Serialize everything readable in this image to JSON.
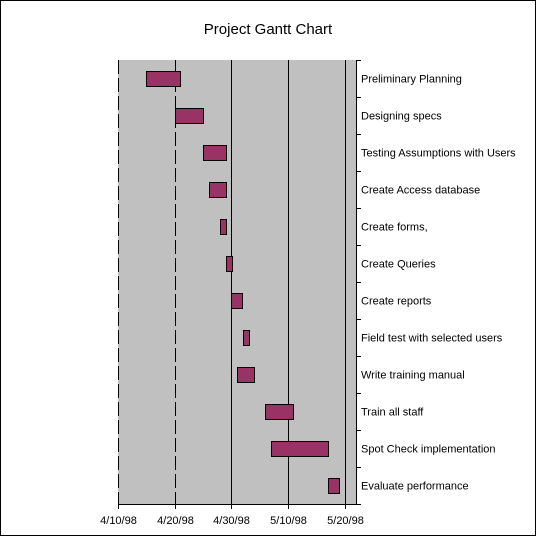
{
  "chart_data": {
    "type": "gantt",
    "title": "Project Gantt Chart",
    "x_axis": {
      "type": "date",
      "range": [
        "1998-04-10",
        "1998-05-22"
      ],
      "tick_dates": [
        "1998-04-10",
        "1998-04-20",
        "1998-04-30",
        "1998-05-10",
        "1998-05-20"
      ],
      "tick_labels": [
        "4/10/98",
        "4/20/98",
        "4/30/98",
        "5/10/98",
        "5/20/98"
      ]
    },
    "tasks": [
      {
        "name": "Preliminary Planning",
        "start": "1998-04-15",
        "end": "1998-04-21"
      },
      {
        "name": "Designing specs",
        "start": "1998-04-20",
        "end": "1998-04-25"
      },
      {
        "name": "Testing Assumptions with Users",
        "start": "1998-04-25",
        "end": "1998-04-29"
      },
      {
        "name": "Create Access database",
        "start": "1998-04-26",
        "end": "1998-04-29"
      },
      {
        "name": "Create forms,",
        "start": "1998-04-28",
        "end": "1998-04-29"
      },
      {
        "name": "Create Queries",
        "start": "1998-04-29",
        "end": "1998-04-30"
      },
      {
        "name": "Create reports",
        "start": "1998-04-30",
        "end": "1998-05-02"
      },
      {
        "name": "Field test with selected users",
        "start": "1998-05-02",
        "end": "1998-05-03"
      },
      {
        "name": "Write training manual",
        "start": "1998-05-01",
        "end": "1998-05-04"
      },
      {
        "name": "Train all staff",
        "start": "1998-05-06",
        "end": "1998-05-11"
      },
      {
        "name": "Spot Check implementation",
        "start": "1998-05-07",
        "end": "1998-05-17"
      },
      {
        "name": "Evaluate performance",
        "start": "1998-05-17",
        "end": "1998-05-19"
      }
    ],
    "gridlines": {
      "dashed_dates": [
        "1998-04-10",
        "1998-04-20",
        "1998-04-30"
      ],
      "solid_dates": [
        "1998-04-30",
        "1998-05-10",
        "1998-05-20"
      ]
    },
    "colors": {
      "plot_background": "#c0c0c0",
      "bar_fill": "#993366",
      "bar_stroke": "#000000",
      "gridline": "#000000"
    },
    "legend": "none"
  }
}
